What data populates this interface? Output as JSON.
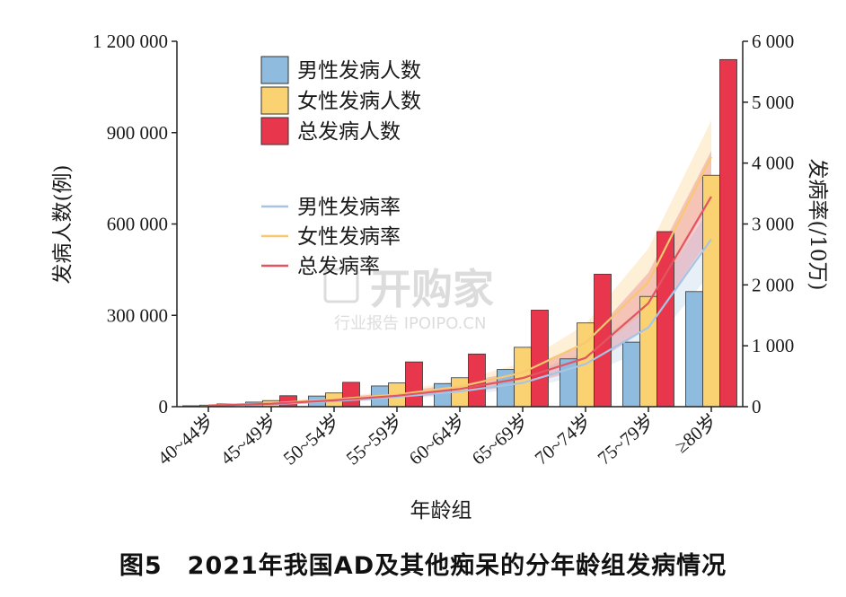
{
  "caption": "图5　2021年我国AD及其他痴呆的分年龄组发病情况",
  "watermark": {
    "main": "开购家",
    "sub": "行业报告 IPOIPO.CN"
  },
  "chart_data": {
    "type": "bar",
    "categories": [
      "40~44岁",
      "45~49岁",
      "50~54岁",
      "55~59岁",
      "60~64岁",
      "65~69岁",
      "70~74岁",
      "75~79岁",
      "≥80岁"
    ],
    "xlabel": "年龄组",
    "ylabel": "发病人数(例)",
    "y2label": "发病率(/10万)",
    "ylim": [
      0,
      1200000
    ],
    "y2lim": [
      0,
      6000
    ],
    "yticks": [
      "0",
      "300 000",
      "600 000",
      "900 000",
      "1 200 000"
    ],
    "y2ticks": [
      "0",
      "1 000",
      "2 000",
      "3 000",
      "4 000",
      "5 000",
      "6 000"
    ],
    "bar_series": [
      {
        "name": "男性发病人数",
        "color": "#8fbcde",
        "values": [
          3000,
          15000,
          35000,
          68000,
          76000,
          122000,
          157000,
          212000,
          378000
        ]
      },
      {
        "name": "女性发病人数",
        "color": "#fbd271",
        "values": [
          5000,
          20000,
          45000,
          78000,
          95000,
          195000,
          275000,
          362000,
          760000
        ]
      },
      {
        "name": "总发病人数",
        "color": "#e8374c",
        "values": [
          9000,
          36000,
          80000,
          147000,
          173000,
          317000,
          435000,
          575000,
          1140000
        ]
      }
    ],
    "line_series": [
      {
        "name": "男性发病率",
        "color": "#a8c4e4",
        "values": [
          15,
          40,
          90,
          160,
          250,
          390,
          700,
          1300,
          2750
        ],
        "lower": [
          8,
          25,
          65,
          120,
          190,
          300,
          520,
          950,
          2200
        ],
        "upper": [
          25,
          60,
          120,
          210,
          320,
          500,
          900,
          1700,
          3300
        ]
      },
      {
        "name": "女性发病率",
        "color": "#f8c870",
        "values": [
          20,
          55,
          120,
          200,
          330,
          560,
          1050,
          2050,
          4100
        ],
        "lower": [
          12,
          35,
          85,
          150,
          250,
          430,
          800,
          1600,
          3400
        ],
        "upper": [
          32,
          80,
          160,
          260,
          430,
          720,
          1350,
          2600,
          4700
        ]
      },
      {
        "name": "总发病率",
        "color": "#e35463",
        "values": [
          18,
          48,
          105,
          180,
          290,
          470,
          800,
          1700,
          3450
        ],
        "lower": [
          10,
          30,
          75,
          135,
          220,
          360,
          620,
          1300,
          2800
        ],
        "upper": [
          28,
          70,
          140,
          235,
          380,
          600,
          1050,
          2200,
          4200
        ]
      }
    ],
    "legend": {
      "position": "top-left"
    },
    "grid": false
  }
}
